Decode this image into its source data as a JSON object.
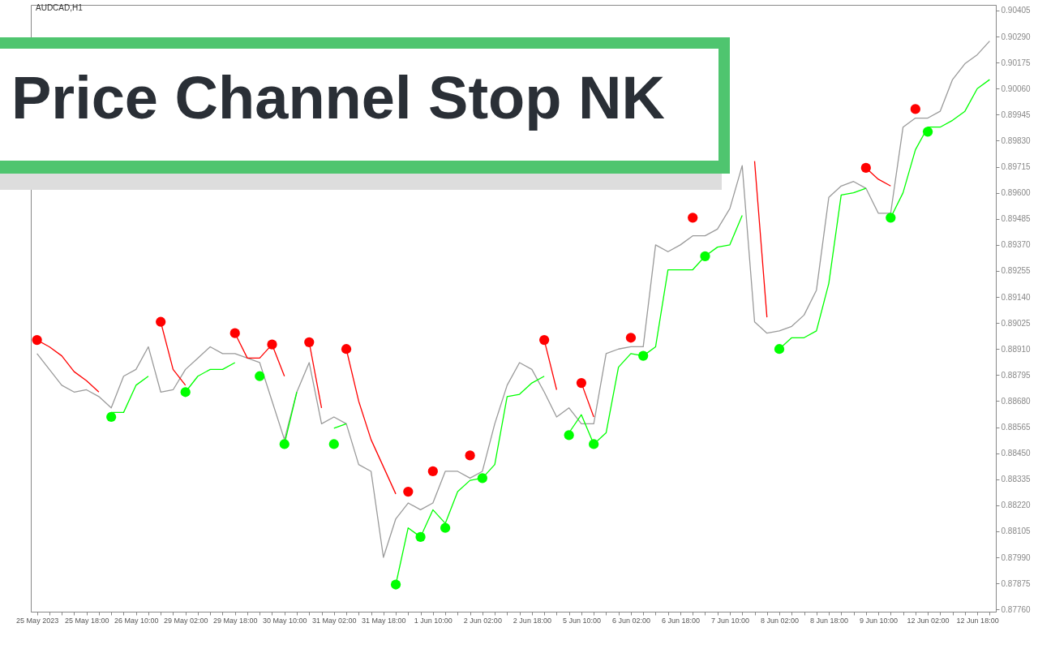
{
  "chart_data": {
    "type": "line",
    "title": "Price Channel Stop NK",
    "annotations": [
      "AUDCAD,H1"
    ],
    "categories": [
      "25 May 2023",
      null,
      null,
      null,
      "25 May 18:00",
      null,
      null,
      null,
      "26 May 10:00",
      null,
      null,
      null,
      "29 May 02:00",
      null,
      null,
      null,
      "29 May 18:00",
      null,
      null,
      null,
      "30 May 10:00",
      null,
      null,
      null,
      "31 May 02:00",
      null,
      null,
      null,
      "31 May 18:00",
      null,
      null,
      null,
      "1 Jun 10:00",
      null,
      null,
      null,
      "2 Jun 02:00",
      null,
      null,
      null,
      "2 Jun 18:00",
      null,
      null,
      null,
      "5 Jun 10:00",
      null,
      null,
      null,
      "6 Jun 02:00",
      null,
      null,
      null,
      "6 Jun 18:00",
      null,
      null,
      null,
      "7 Jun 10:00",
      null,
      null,
      null,
      "8 Jun 02:00",
      null,
      null,
      null,
      "8 Jun 18:00",
      null,
      null,
      null,
      "9 Jun 10:00",
      null,
      null,
      null,
      "12 Jun 02:00",
      null,
      null,
      null,
      "12 Jun 18:00",
      null
    ],
    "ylim": [
      0.8775,
      0.9043
    ],
    "yticks": [
      {
        "value": 0.8776,
        "label": "0.87760"
      },
      0.87875,
      {
        "value": 0.8799,
        "label": "0.87990"
      },
      0.88105,
      {
        "value": 0.8822,
        "label": "0.88220"
      },
      0.88335,
      {
        "value": 0.8845,
        "label": "0.88450"
      },
      0.88565,
      {
        "value": 0.8868,
        "label": "0.88680"
      },
      0.88795,
      {
        "value": 0.8891,
        "label": "0.88910"
      },
      0.89025,
      {
        "value": 0.8914,
        "label": "0.89140"
      },
      0.89255,
      {
        "value": 0.8937,
        "label": "0.89370"
      },
      0.89485,
      {
        "value": 0.896,
        "label": "0.89600"
      },
      0.89715,
      {
        "value": 0.8983,
        "label": "0.89830"
      },
      0.89945,
      {
        "value": 0.9006,
        "label": "0.90060"
      },
      0.90175,
      {
        "value": 0.9029,
        "label": "0.90290"
      },
      0.90405
    ],
    "grid": false,
    "line_style": "solid",
    "series": [
      {
        "color": "#9a9a9a",
        "values": [
          0.8889,
          0.8882,
          0.8875,
          0.8872,
          0.8873,
          0.887,
          0.8865,
          0.8879,
          0.8882,
          0.8892,
          0.8872,
          0.8873,
          0.8882,
          0.8887,
          0.8892,
          0.8889,
          0.8889,
          0.8887,
          0.8885,
          0.8868,
          0.8851,
          0.8872,
          0.8885,
          0.8858,
          0.8861,
          0.8858,
          0.884,
          0.8837,
          0.8799,
          0.8816,
          0.8823,
          0.882,
          0.8823,
          0.8837,
          0.8837,
          0.8834,
          0.8837,
          0.8858,
          0.8875,
          0.8885,
          0.8882,
          0.8872,
          0.8861,
          0.8865,
          0.8858,
          0.8858,
          0.8889,
          0.8891,
          0.8892,
          0.8892,
          0.8937,
          0.8934,
          0.8937,
          0.8941,
          0.8941,
          0.8944,
          0.8953,
          0.8972,
          0.8903,
          0.8898,
          0.8899,
          0.8901,
          0.8906,
          0.8917,
          0.8958,
          0.8963,
          0.8965,
          0.8962,
          0.8951,
          0.8951,
          0.8989,
          0.8993,
          0.8993,
          0.8996,
          0.901,
          0.9017,
          0.9021,
          0.9027
        ]
      },
      {
        "color": "#ff0000",
        "values": [
          0.8895,
          0.8892,
          0.8888,
          0.8881,
          0.8877,
          0.8872,
          null,
          null,
          null,
          null,
          0.8903,
          0.8882,
          0.8875,
          null,
          null,
          null,
          0.8898,
          0.8887,
          0.8887,
          0.8893,
          0.8879,
          null,
          0.8894,
          0.8865,
          null,
          0.8891,
          0.8868,
          0.8851,
          0.8839,
          0.8827,
          null,
          null,
          null,
          null,
          null,
          null,
          null,
          null,
          null,
          null,
          null,
          0.8895,
          0.8873,
          null,
          0.8876,
          0.8861,
          null,
          null,
          null,
          null,
          null,
          null,
          null,
          null,
          null,
          null,
          null,
          null,
          0.8974,
          0.8905,
          null,
          null,
          null,
          null,
          null,
          null,
          null,
          0.8971,
          0.8966,
          0.8963,
          null,
          null,
          null,
          null,
          null,
          null,
          null,
          null
        ]
      },
      {
        "color": "#00ff00",
        "values": [
          null,
          null,
          null,
          null,
          null,
          null,
          0.8863,
          0.8863,
          0.8875,
          0.8879,
          null,
          null,
          0.8872,
          0.8879,
          0.8882,
          0.8882,
          0.8885,
          null,
          null,
          null,
          0.8849,
          0.8872,
          null,
          null,
          0.8856,
          0.8858,
          null,
          null,
          null,
          0.8787,
          0.8812,
          0.8808,
          0.882,
          0.8814,
          0.8828,
          0.8833,
          0.8834,
          0.884,
          0.887,
          0.8871,
          0.8876,
          0.8879,
          null,
          0.8854,
          0.8862,
          0.8849,
          0.8854,
          0.8883,
          0.8889,
          0.8888,
          0.8892,
          0.8926,
          0.8926,
          0.8926,
          0.8932,
          0.8936,
          0.8937,
          0.895,
          null,
          null,
          0.8891,
          0.8896,
          0.8896,
          0.8899,
          0.892,
          0.8959,
          0.896,
          0.8962,
          null,
          0.8949,
          0.896,
          0.8979,
          0.8989,
          0.8989,
          0.8992,
          0.8996,
          0.9006,
          0.901
        ]
      },
      {
        "type": "scatter",
        "color": "#ff0000",
        "values": [
          0.8895,
          null,
          null,
          null,
          null,
          null,
          null,
          null,
          null,
          null,
          0.8903,
          null,
          null,
          null,
          null,
          null,
          0.8898,
          null,
          null,
          0.8893,
          null,
          null,
          0.8894,
          null,
          null,
          0.8891,
          null,
          null,
          null,
          null,
          0.8828,
          null,
          0.8837,
          null,
          null,
          0.8844,
          null,
          null,
          null,
          null,
          null,
          0.8895,
          null,
          null,
          0.8876,
          null,
          null,
          null,
          0.8896,
          null,
          null,
          null,
          null,
          0.8949,
          null,
          null,
          null,
          null,
          null,
          null,
          null,
          null,
          null,
          null,
          null,
          null,
          null,
          0.8971,
          null,
          null,
          null,
          0.8997,
          null,
          null,
          null,
          null,
          null,
          null
        ]
      },
      {
        "type": "scatter",
        "color": "#00ff00",
        "values": [
          null,
          null,
          null,
          null,
          null,
          null,
          0.8861,
          null,
          null,
          null,
          null,
          null,
          0.8872,
          null,
          null,
          null,
          null,
          null,
          0.8879,
          null,
          0.8849,
          null,
          null,
          null,
          0.8849,
          null,
          null,
          null,
          null,
          0.8787,
          null,
          0.8808,
          null,
          0.8812,
          null,
          null,
          0.8834,
          null,
          null,
          null,
          null,
          null,
          null,
          0.8853,
          null,
          0.8849,
          null,
          null,
          null,
          0.8888,
          null,
          null,
          null,
          null,
          0.8932,
          null,
          null,
          null,
          null,
          null,
          0.8891,
          null,
          null,
          null,
          null,
          null,
          null,
          null,
          null,
          0.8949,
          null,
          null,
          0.8987,
          null,
          null,
          null,
          null,
          null
        ]
      }
    ]
  }
}
